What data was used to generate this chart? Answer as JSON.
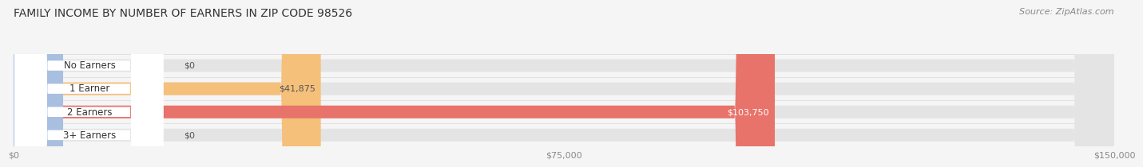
{
  "title": "FAMILY INCOME BY NUMBER OF EARNERS IN ZIP CODE 98526",
  "source": "Source: ZipAtlas.com",
  "categories": [
    "No Earners",
    "1 Earner",
    "2 Earners",
    "3+ Earners"
  ],
  "values": [
    0,
    41875,
    103750,
    0
  ],
  "bar_colors": [
    "#f589a3",
    "#f5c07a",
    "#e8736a",
    "#a8bfe0"
  ],
  "value_labels": [
    "$0",
    "$41,875",
    "$103,750",
    "$0"
  ],
  "value_label_colors": [
    "#555555",
    "#555555",
    "#ffffff",
    "#555555"
  ],
  "xlim": [
    0,
    150000
  ],
  "xticklabels": [
    "$0",
    "$75,000",
    "$150,000"
  ],
  "bg_color": "#f5f5f5",
  "bar_bg_color": "#e4e4e4",
  "title_fontsize": 10,
  "source_fontsize": 8,
  "bar_height": 0.55
}
